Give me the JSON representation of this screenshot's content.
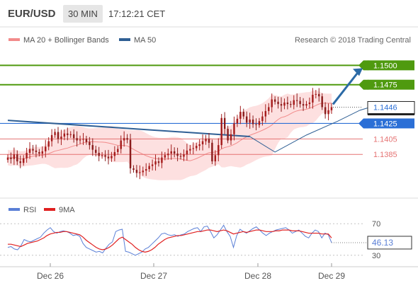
{
  "header": {
    "pair": "EUR/USD",
    "timeframe": "30 MIN",
    "time": "17:12:21 CET"
  },
  "legend": {
    "bb_label": "MA 20 + Bollinger Bands",
    "ma50_label": "MA 50",
    "copyright": "Research © 2018 Trading Central"
  },
  "rsi_legend": {
    "rsi_label": "RSI",
    "ma_label": "9MA"
  },
  "colors": {
    "bullish": "#a51c1c",
    "bearish": "#8b1d1d",
    "bb_fill": "#fde0e0",
    "bb_line": "#f28b8b",
    "ma50": "#2f5f94",
    "green": "#4f9a0f",
    "blue": "#2b6fd6",
    "red": "#e57373",
    "rsi": "#5a7fd6",
    "rsi_ma": "#e02020",
    "pointer_box": "#222222",
    "arrow": "#2b6aa6"
  },
  "chart_data": [
    {
      "type": "line",
      "panel": "price",
      "x_tick_labels": [
        "Dec 26",
        "Dec 27",
        "Dec 28",
        "Dec 29"
      ],
      "ylim": [
        1.1345,
        1.1525
      ],
      "levels": [
        {
          "value": 1.15,
          "label": "1.1500",
          "style": "green"
        },
        {
          "value": 1.1475,
          "label": "1.1475",
          "style": "green"
        },
        {
          "value": 1.1446,
          "label": "1.1446",
          "style": "current"
        },
        {
          "value": 1.1425,
          "label": "1.1425",
          "style": "blue"
        },
        {
          "value": 1.1405,
          "label": "1.1405",
          "style": "red"
        },
        {
          "value": 1.1385,
          "label": "1.1385",
          "style": "red"
        }
      ],
      "ma50_segment": {
        "x_start": 0,
        "x_end": 77,
        "y_start": 1.1429,
        "y_end": 1.1408
      },
      "ma50_recent": [
        [
          77,
          1.1408
        ],
        [
          85,
          1.1388
        ],
        [
          95,
          1.141
        ],
        [
          105,
          1.1428
        ],
        [
          112,
          1.1442
        ],
        [
          117,
          1.1448
        ]
      ],
      "close": [
        1.1381,
        1.1379,
        1.1385,
        1.1376,
        1.1374,
        1.138,
        1.1387,
        1.1392,
        1.139,
        1.1388,
        1.1386,
        1.1389,
        1.1395,
        1.1402,
        1.141,
        1.1414,
        1.1405,
        1.1408,
        1.1412,
        1.141,
        1.1411,
        1.1406,
        1.1403,
        1.1404,
        1.1405,
        1.1401,
        1.1397,
        1.1391,
        1.1387,
        1.1383,
        1.1384,
        1.1382,
        1.138,
        1.1383,
        1.1388,
        1.1392,
        1.1403,
        1.1406,
        1.1404,
        1.1367,
        1.1365,
        1.1361,
        1.1362,
        1.1364,
        1.1366,
        1.137,
        1.1372,
        1.1376,
        1.1374,
        1.1381,
        1.1384,
        1.1386,
        1.1389,
        1.1386,
        1.1383,
        1.1382,
        1.1385,
        1.139,
        1.1392,
        1.1393,
        1.1396,
        1.1398,
        1.1402,
        1.1405,
        1.14,
        1.1376,
        1.1384,
        1.1397,
        1.1432,
        1.1418,
        1.1403,
        1.1411,
        1.1425,
        1.1431,
        1.144,
        1.1434,
        1.1426,
        1.143,
        1.1424,
        1.1423,
        1.1428,
        1.1434,
        1.1441,
        1.1446,
        1.1456,
        1.1453,
        1.145,
        1.1448,
        1.1452,
        1.145,
        1.1449,
        1.1455,
        1.1454,
        1.145,
        1.1448,
        1.145,
        1.1452,
        1.1462,
        1.1463,
        1.146,
        1.1446,
        1.1437,
        1.1442,
        1.1446
      ]
    },
    {
      "type": "line",
      "panel": "rsi",
      "x_tick_labels": [
        "Dec 26",
        "Dec 27",
        "Dec 28",
        "Dec 29"
      ],
      "ylim": [
        20,
        80
      ],
      "ticks": [
        70,
        30
      ],
      "current_label": "46.13",
      "rsi": [
        40,
        41,
        38,
        37,
        42,
        50,
        48,
        47,
        49,
        51,
        53,
        58,
        62,
        65,
        60,
        58,
        60,
        61,
        60,
        58,
        55,
        56,
        54,
        45,
        40,
        38,
        36,
        34,
        35,
        33,
        39,
        44,
        47,
        60,
        62,
        63,
        35,
        34,
        32,
        30,
        32,
        34,
        38,
        40,
        44,
        48,
        52,
        57,
        58,
        56,
        55,
        56,
        54,
        56,
        57,
        60,
        62,
        64,
        65,
        60,
        66,
        67,
        60,
        52,
        56,
        62,
        68,
        60,
        54,
        40,
        55,
        63,
        60,
        58,
        61,
        64,
        66,
        62,
        58,
        55,
        58,
        60,
        62,
        63,
        64,
        65,
        62,
        58,
        60,
        62,
        58,
        54,
        52,
        58,
        62,
        60,
        52,
        58,
        56,
        46
      ],
      "ma9": [
        44,
        44,
        43,
        42,
        41,
        43,
        45,
        46,
        47,
        48,
        50,
        52,
        55,
        57,
        58,
        59,
        59,
        60,
        60,
        59,
        58,
        57,
        56,
        53,
        49,
        46,
        43,
        40,
        38,
        37,
        38,
        40,
        43,
        47,
        51,
        53,
        50,
        47,
        44,
        40,
        37,
        35,
        34,
        35,
        37,
        40,
        44,
        47,
        50,
        52,
        53,
        54,
        55,
        55,
        56,
        57,
        58,
        59,
        60,
        60,
        61,
        62,
        62,
        61,
        60,
        61,
        62,
        61,
        59,
        57,
        58,
        59,
        60,
        59,
        60,
        61,
        62,
        62,
        61,
        60,
        60,
        60,
        61,
        61,
        62,
        62,
        62,
        61,
        61,
        61,
        60,
        59,
        58,
        58,
        58,
        58,
        57,
        57,
        57,
        52
      ]
    }
  ]
}
